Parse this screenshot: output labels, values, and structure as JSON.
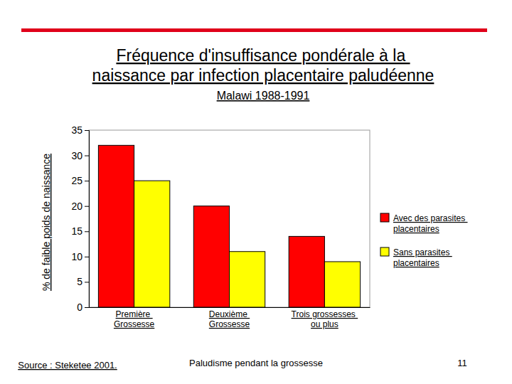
{
  "chart_data": {
    "type": "bar",
    "title": "Fréquence d'insuffisance pondérale à la naissance par infection placentaire paludéenne",
    "subtitle": "Malawi 1988-1991",
    "y_label": "% de faible poids de naissance",
    "categories": [
      "Première Grossesse",
      "Deuxième Grossesse",
      "Trois grossesses ou plus"
    ],
    "series": [
      {
        "name": "Avec des parasites placentaires",
        "color": "#ff0000",
        "values": [
          32,
          20,
          14
        ]
      },
      {
        "name": "Sans parasites placentaires",
        "color": "#ffff00",
        "values": [
          25,
          11,
          9
        ]
      }
    ],
    "ylim": [
      0,
      35
    ],
    "yticks": [
      0,
      5,
      10,
      15,
      20,
      25,
      30,
      35
    ],
    "grid": false,
    "legend": "right",
    "annotations": [
      "Source : Steketee 2001.",
      "Paludisme pendant la grossesse",
      "11"
    ]
  }
}
